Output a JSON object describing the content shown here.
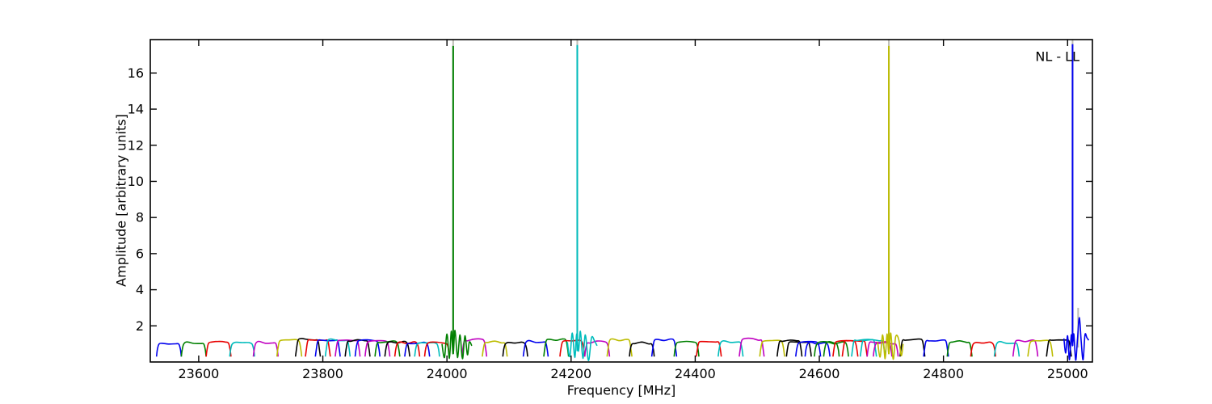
{
  "figure": {
    "xlabel": "Frequency [MHz]",
    "ylabel": "Amplitude [arbitrary units]",
    "corner_label": "NL - LL"
  },
  "chart_data": {
    "type": "line",
    "title": "",
    "xlabel": "Frequency [MHz]",
    "ylabel": "Amplitude [arbitrary units]",
    "annotation": {
      "text": "NL - LL",
      "position": "top-right"
    },
    "xlim": [
      23522,
      25040
    ],
    "ylim": [
      0,
      17.85
    ],
    "xticks": [
      23600,
      23800,
      24000,
      24200,
      24400,
      24600,
      24800,
      25000
    ],
    "yticks": [
      2,
      4,
      6,
      8,
      10,
      12,
      14,
      16
    ],
    "grid": false,
    "legend": false,
    "colors": {
      "b": "#0000ee",
      "g": "#008000",
      "r": "#e80000",
      "c": "#00bcbc",
      "m": "#c000c0",
      "y": "#bcbc00",
      "k": "#000000",
      "gray": "#bdbdb5"
    },
    "band_width": 40,
    "band_top": 1.15,
    "band_dip": 0.3,
    "bands": [
      {
        "color": "b",
        "f": 23552
      },
      {
        "color": "g",
        "f": 23592
      },
      {
        "color": "r",
        "f": 23632
      },
      {
        "color": "c",
        "f": 23670
      },
      {
        "color": "m",
        "f": 23708
      },
      {
        "color": "y",
        "f": 23746
      },
      {
        "color": "k",
        "f": 23776
      },
      {
        "color": "r",
        "f": 23792
      },
      {
        "color": "b",
        "f": 23808
      },
      {
        "color": "c",
        "f": 23824
      },
      {
        "color": "m",
        "f": 23840
      },
      {
        "color": "k",
        "f": 23856
      },
      {
        "color": "b",
        "f": 23872
      },
      {
        "color": "m",
        "f": 23888
      },
      {
        "color": "g",
        "f": 23904
      },
      {
        "color": "k",
        "f": 23920
      },
      {
        "color": "r",
        "f": 23936
      },
      {
        "color": "b",
        "f": 23952
      },
      {
        "color": "c",
        "f": 23968
      },
      {
        "color": "r",
        "f": 23984
      },
      {
        "color": "m",
        "f": 24044
      },
      {
        "color": "y",
        "f": 24077
      },
      {
        "color": "k",
        "f": 24110
      },
      {
        "color": "b",
        "f": 24143
      },
      {
        "color": "g",
        "f": 24176
      },
      {
        "color": "r",
        "f": 24202
      },
      {
        "color": "m",
        "f": 24242
      },
      {
        "color": "y",
        "f": 24278
      },
      {
        "color": "k",
        "f": 24314
      },
      {
        "color": "b",
        "f": 24350
      },
      {
        "color": "g",
        "f": 24386
      },
      {
        "color": "r",
        "f": 24422
      },
      {
        "color": "c",
        "f": 24457
      },
      {
        "color": "m",
        "f": 24491
      },
      {
        "color": "y",
        "f": 24524
      },
      {
        "color": "k",
        "f": 24552
      },
      {
        "color": "k",
        "f": 24567
      },
      {
        "color": "b",
        "f": 24582
      },
      {
        "color": "b",
        "f": 24597
      },
      {
        "color": "g",
        "f": 24612
      },
      {
        "color": "g",
        "f": 24627
      },
      {
        "color": "r",
        "f": 24642
      },
      {
        "color": "r",
        "f": 24657
      },
      {
        "color": "c",
        "f": 24672
      },
      {
        "color": "c",
        "f": 24686
      },
      {
        "color": "m",
        "f": 24697
      },
      {
        "color": "m",
        "f": 24707
      },
      {
        "color": "k",
        "f": 24750
      },
      {
        "color": "b",
        "f": 24788
      },
      {
        "color": "g",
        "f": 24826
      },
      {
        "color": "r",
        "f": 24864
      },
      {
        "color": "c",
        "f": 24902
      },
      {
        "color": "m",
        "f": 24932
      },
      {
        "color": "y",
        "f": 24956
      },
      {
        "color": "k",
        "f": 24986
      }
    ],
    "ripples": [
      {
        "color": "g",
        "points": [
          [
            23992,
            1.0
          ],
          [
            23996,
            0.25
          ],
          [
            24000,
            1.55
          ],
          [
            24004,
            0.2
          ],
          [
            24007,
            1.7
          ],
          [
            24010,
            0.45
          ],
          [
            24013,
            1.75
          ],
          [
            24017,
            0.25
          ],
          [
            24021,
            1.5
          ],
          [
            24025,
            0.18
          ],
          [
            24029,
            1.45
          ],
          [
            24033,
            0.4
          ],
          [
            24036,
            1.1
          ],
          [
            24040,
            0.9
          ]
        ]
      },
      {
        "color": "c",
        "points": [
          [
            24194,
            1.1
          ],
          [
            24198,
            0.3
          ],
          [
            24202,
            1.6
          ],
          [
            24206,
            0.25
          ],
          [
            24209,
            1.55
          ],
          [
            24212,
            0.6
          ],
          [
            24215,
            1.7
          ],
          [
            24219,
            0.2
          ],
          [
            24223,
            1.5
          ],
          [
            24228,
            0.08
          ],
          [
            24233,
            1.35
          ],
          [
            24238,
            1.15
          ],
          [
            24242,
            0.9
          ]
        ]
      },
      {
        "color": "y",
        "points": [
          [
            24694,
            1.1
          ],
          [
            24698,
            0.28
          ],
          [
            24702,
            1.5
          ],
          [
            24706,
            0.18
          ],
          [
            24709,
            1.55
          ],
          [
            24712,
            0.45
          ],
          [
            24715,
            1.6
          ],
          [
            24719,
            0.15
          ],
          [
            24723,
            1.4
          ],
          [
            24728,
            1.25
          ],
          [
            24732,
            0.35
          ],
          [
            24735,
            1.0
          ]
        ]
      },
      {
        "color": "b",
        "points": [
          [
            24994,
            1.3
          ],
          [
            24997,
            0.5
          ],
          [
            25000,
            1.45
          ],
          [
            25003,
            0.12
          ],
          [
            25006,
            1.5
          ],
          [
            25008,
            0.9
          ],
          [
            25010,
            1.55
          ],
          [
            25013,
            0.1
          ],
          [
            25016,
            1.3
          ],
          [
            25019,
            2.45
          ],
          [
            25022,
            1.1
          ],
          [
            25025,
            0.12
          ],
          [
            25028,
            1.5
          ],
          [
            25031,
            1.35
          ],
          [
            25034,
            1.2
          ]
        ]
      }
    ],
    "spikes": [
      {
        "f": 24010,
        "top": 17.85,
        "base": 1.0,
        "color": "gray",
        "layer": "back"
      },
      {
        "f": 24210,
        "top": 17.85,
        "base": 1.0,
        "color": "gray",
        "layer": "back"
      },
      {
        "f": 24712,
        "top": 17.85,
        "base": 1.0,
        "color": "gray",
        "layer": "back"
      },
      {
        "f": 25008,
        "top": 17.85,
        "base": 1.0,
        "color": "gray",
        "layer": "back"
      },
      {
        "f": 25017,
        "top": 3.0,
        "base": 0.8,
        "color": "gray",
        "layer": "back"
      },
      {
        "f": 24010,
        "top": 17.5,
        "base": 0.45,
        "color": "g",
        "layer": "front"
      },
      {
        "f": 24210,
        "top": 17.55,
        "base": 0.6,
        "color": "c",
        "layer": "front"
      },
      {
        "f": 24712,
        "top": 17.5,
        "base": 0.45,
        "color": "y",
        "layer": "front"
      },
      {
        "f": 25008,
        "top": 17.6,
        "base": 0.9,
        "color": "b",
        "layer": "front"
      }
    ]
  }
}
